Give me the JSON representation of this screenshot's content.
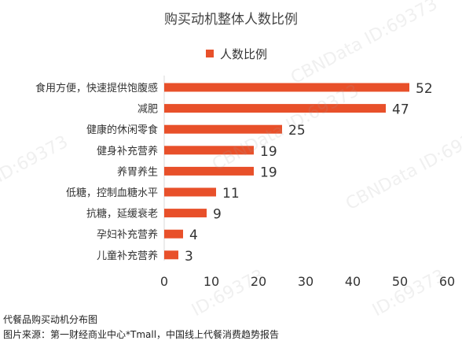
{
  "chart_data": {
    "type": "bar",
    "orientation": "horizontal",
    "title": "购买动机整体人数比例",
    "series": [
      {
        "name": "人数比例",
        "color": "#e8502a",
        "values": [
          52,
          47,
          25,
          19,
          19,
          11,
          9,
          4,
          3
        ]
      }
    ],
    "categories": [
      "食用方便，快速提供饱腹感",
      "减肥",
      "健康的休闲零食",
      "健身补充营养",
      "养胃养生",
      "低糖，控制血糖水平",
      "抗糖，延缓衰老",
      "孕妇补充营养",
      "儿童补充营养"
    ],
    "xlim": [
      0,
      60
    ],
    "xticks": [
      0,
      10,
      20,
      30,
      40,
      50,
      60
    ],
    "grid": false,
    "legend_position": "top-center",
    "data_labels": true
  },
  "captions": {
    "line1": "代餐品购买动机分布图",
    "line2": "图片来源：第一财经商业中心*Tmall，中国线上代餐消费趋势报告"
  },
  "watermarks": [
    "CBNData ID:69373",
    "CBNData ID:69373",
    "CBNData ID:69373",
    "ID:69373",
    "ID:69373",
    "ID:69373"
  ]
}
